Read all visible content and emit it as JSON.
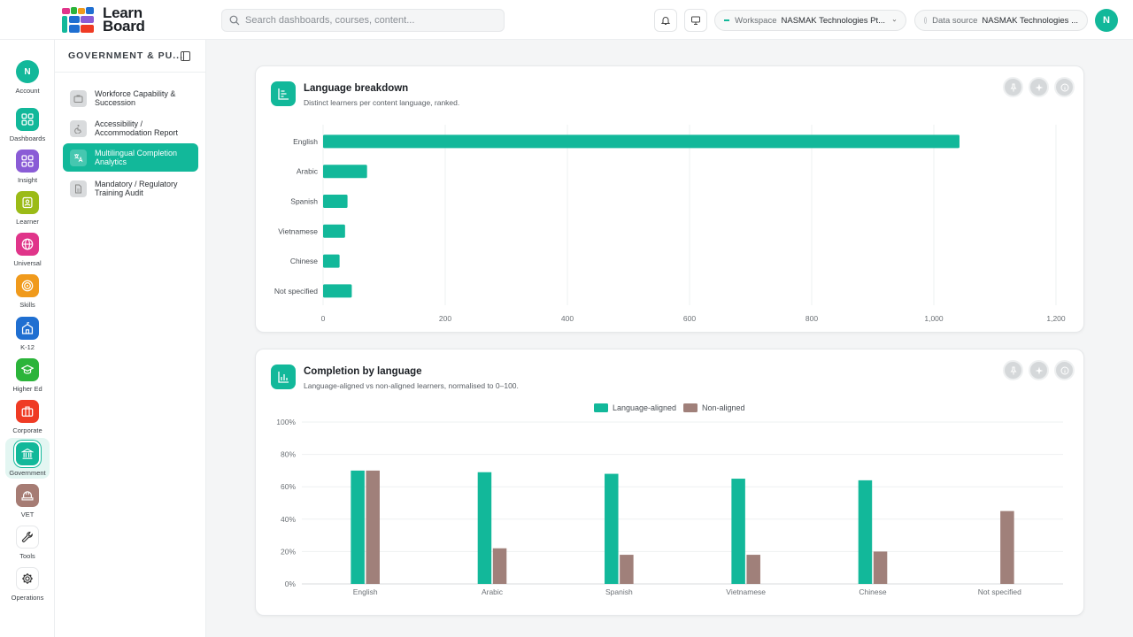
{
  "app": {
    "logo_line1": "Learn",
    "logo_line2": "Board"
  },
  "topbar": {
    "search_placeholder": "Search dashboards, courses, content...",
    "workspace_label": "Workspace",
    "workspace_value": "NASMAK Technologies Pt...",
    "datasource_label": "Data source",
    "datasource_value": "NASMAK Technologies ...",
    "avatar_initial": "N"
  },
  "rail": {
    "items": [
      {
        "label": "Account",
        "icon": "account-avatar",
        "color": "#12b89a",
        "initial": "N"
      },
      {
        "label": "Dashboards",
        "icon": "dashboard-grid-icon",
        "color": "#12b89a"
      },
      {
        "label": "Insight",
        "icon": "insight-grid-icon",
        "color": "#8a5cd6"
      },
      {
        "label": "Learner",
        "icon": "learner-badge-icon",
        "color": "#9bbb17"
      },
      {
        "label": "Universal",
        "icon": "globe-icon",
        "color": "#e0358a"
      },
      {
        "label": "Skills",
        "icon": "target-icon",
        "color": "#f09a1c"
      },
      {
        "label": "K-12",
        "icon": "school-icon",
        "color": "#1f6fd1"
      },
      {
        "label": "Higher Ed",
        "icon": "graduation-cap-icon",
        "color": "#2bb43a"
      },
      {
        "label": "Corporate",
        "icon": "briefcase-icon",
        "color": "#ef3b24"
      },
      {
        "label": "Government",
        "icon": "government-building-icon",
        "color": "#12b89a"
      },
      {
        "label": "VET",
        "icon": "hard-hat-icon",
        "color": "#a67c74"
      },
      {
        "label": "Tools",
        "icon": "wrench-icon",
        "color": "#ffffff"
      },
      {
        "label": "Operations",
        "icon": "gear-icon",
        "color": "#ffffff"
      }
    ]
  },
  "subnav": {
    "title": "GOVERNMENT & PU...",
    "items": [
      {
        "label": "Workforce Capability & Succession",
        "icon": "briefcase-icon"
      },
      {
        "label": "Accessibility / Accommodation Report",
        "icon": "accessibility-icon"
      },
      {
        "label": "Multilingual Completion Analytics",
        "icon": "translate-icon"
      },
      {
        "label": "Mandatory / Regulatory Training Audit",
        "icon": "document-icon"
      }
    ]
  },
  "language_card": {
    "title": "Language breakdown",
    "subtitle": "Distinct learners per content language, ranked."
  },
  "completion_card": {
    "title": "Completion by language",
    "subtitle": "Language-aligned vs non-aligned learners, normalised to 0–100."
  },
  "colors": {
    "accent": "#12b89a",
    "non_aligned": "#a0807a"
  },
  "chart_data": [
    {
      "type": "bar",
      "orientation": "horizontal",
      "categories": [
        "English",
        "Arabic",
        "Spanish",
        "Vietnamese",
        "Chinese",
        "Not specified"
      ],
      "values": [
        1042,
        72,
        40,
        36,
        27,
        47
      ],
      "xlim": [
        0,
        1200
      ],
      "xticks": [
        "0",
        "200",
        "400",
        "600",
        "800",
        "1,000",
        "1,200"
      ],
      "grid": true
    },
    {
      "type": "bar",
      "categories": [
        "English",
        "Arabic",
        "Spanish",
        "Vietnamese",
        "Chinese",
        "Not specified"
      ],
      "series": [
        {
          "name": "Language-aligned",
          "values": [
            70,
            69,
            68,
            65,
            64,
            null
          ]
        },
        {
          "name": "Non-aligned",
          "values": [
            70,
            22,
            18,
            18,
            20,
            45
          ]
        }
      ],
      "ylim": [
        0,
        100
      ],
      "yticks": [
        "0%",
        "20%",
        "40%",
        "60%",
        "80%",
        "100%"
      ],
      "legend": "top-center",
      "grid": true
    }
  ]
}
